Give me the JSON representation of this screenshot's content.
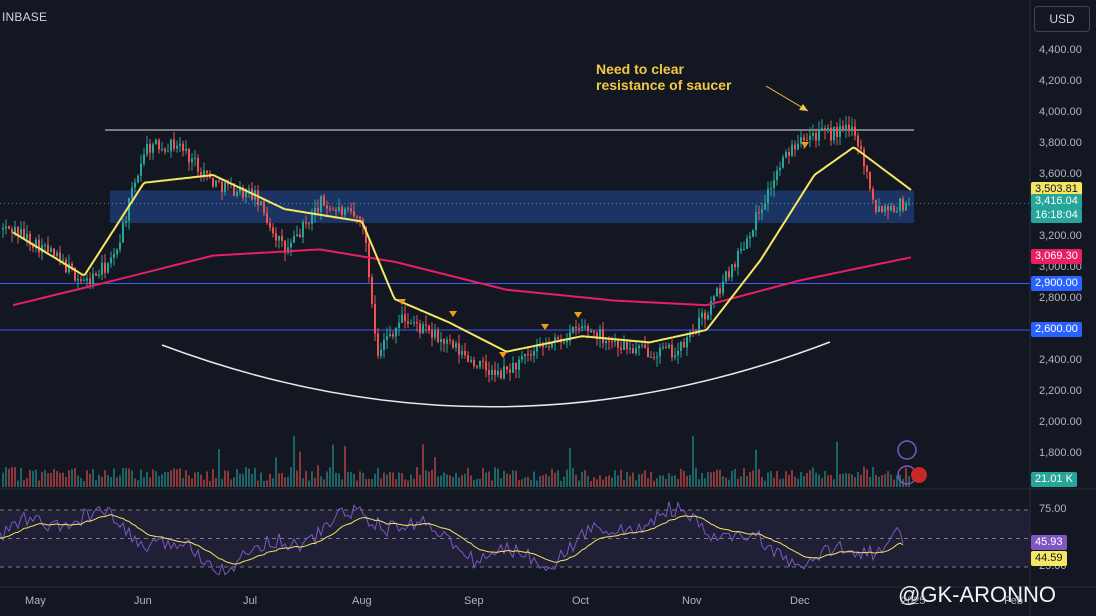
{
  "header": {
    "exchange": "INBASE",
    "currency": "USD"
  },
  "annotation": {
    "line1": "Need to clear",
    "line2": "resistance of saucer"
  },
  "price_axis": {
    "ticks": [
      "4,400.00",
      "4,200.00",
      "4,000.00",
      "3,800.00",
      "3,600.00",
      "3,400.00",
      "3,200.00",
      "3,000.00",
      "2,800.00",
      "2,600.00",
      "2,400.00",
      "2,200.00",
      "2,000.00",
      "1,800.00"
    ],
    "tags": {
      "ma20": "3,503.81",
      "last_price": "3,416.04",
      "countdown": "16:18:04",
      "ma200": "3,069.30",
      "support_2900": "2,900.00",
      "support_2600": "2,600.00",
      "volume": "21.01 K"
    }
  },
  "rsi_axis": {
    "ticks": [
      "75.00",
      "25.00"
    ],
    "rsi_value": "45.93",
    "rsi_ma_value": "44.59"
  },
  "time_axis": {
    "labels": [
      "May",
      "Jun",
      "Jul",
      "Aug",
      "Sep",
      "Oct",
      "Nov",
      "Dec",
      "2025",
      "Feb"
    ]
  },
  "watermark": "@GK-ARONNO",
  "colors": {
    "background": "#131722",
    "up": "#26a69a",
    "down": "#ef5350",
    "ma20": "#f5e663",
    "ma200": "#e91e63",
    "zone": "#1e3a6e",
    "support": "#3d5afe",
    "rsi": "#7e57c2",
    "annotation": "#f2c842"
  },
  "chart_data": {
    "type": "line",
    "title": "",
    "x": [
      "May",
      "Jun",
      "Jul",
      "Aug",
      "Sep",
      "Oct",
      "Nov",
      "Dec",
      "2025",
      "Feb"
    ],
    "ylim": [
      1700,
      4560
    ],
    "series": [
      {
        "name": "",
        "x": [
          "Apr 25",
          "May 5",
          "May 15",
          "May 23",
          "Jun 1",
          "Jun 10",
          "Jun 20",
          "Jul 1",
          "Jul 10",
          "Jul 20",
          "Aug 1",
          "Aug 5",
          "Aug 12",
          "Aug 25",
          "Sep 7",
          "Sep 20",
          "Oct 1",
          "Oct 15",
          "Oct 28",
          "Nov 5",
          "Nov 15",
          "Nov 25",
          "Dec 1",
          "Dec 8",
          "Dec 16",
          "Dec 22",
          "Jan 1"
        ],
        "values": [
          3250,
          3100,
          2900,
          3050,
          3780,
          3800,
          3550,
          3470,
          3100,
          3420,
          3300,
          2470,
          2680,
          2500,
          2300,
          2480,
          2620,
          2470,
          2460,
          2720,
          3150,
          3650,
          3870,
          3860,
          3900,
          3390,
          3416
        ]
      },
      {
        "name": "",
        "x": [
          "Apr 25",
          "May 15",
          "Jun 1",
          "Jun 20",
          "Jul 10",
          "Aug 1",
          "Aug 10",
          "Aug 25",
          "Sep 10",
          "Oct 1",
          "Oct 20",
          "Nov 5",
          "Nov 20",
          "Dec 5",
          "Dec 16",
          "Jan 1"
        ],
        "values": [
          3230,
          2950,
          3550,
          3600,
          3380,
          3300,
          2800,
          2650,
          2460,
          2560,
          2520,
          2600,
          3050,
          3600,
          3780,
          3504
        ]
      },
      {
        "name": "",
        "x": [
          "Apr 25",
          "May 20",
          "Jun 20",
          "Jul 20",
          "Aug 10",
          "Sep 10",
          "Oct 10",
          "Nov 5",
          "Dec 1",
          "Jan 1"
        ],
        "values": [
          2760,
          2900,
          3080,
          3120,
          3040,
          2860,
          2790,
          2760,
          2920,
          3069
        ]
      }
    ],
    "levels": [
      {
        "value": 3890
      },
      {
        "value": 2900
      },
      {
        "value": 2600
      }
    ],
    "zone": [
      3290,
      3500
    ],
    "rsi": {
      "ylim": [
        15,
        90
      ],
      "guides": [
        75,
        50,
        25
      ],
      "value": 45.93,
      "ma_value": 44.59
    },
    "grid": false
  }
}
